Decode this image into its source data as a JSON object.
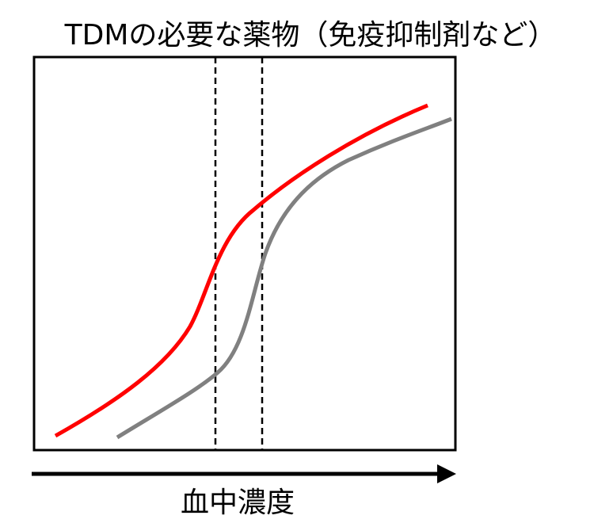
{
  "title": "TDMの必要な薬物（免疫抑制剤など）",
  "x_axis_label": "血中濃度"
}
